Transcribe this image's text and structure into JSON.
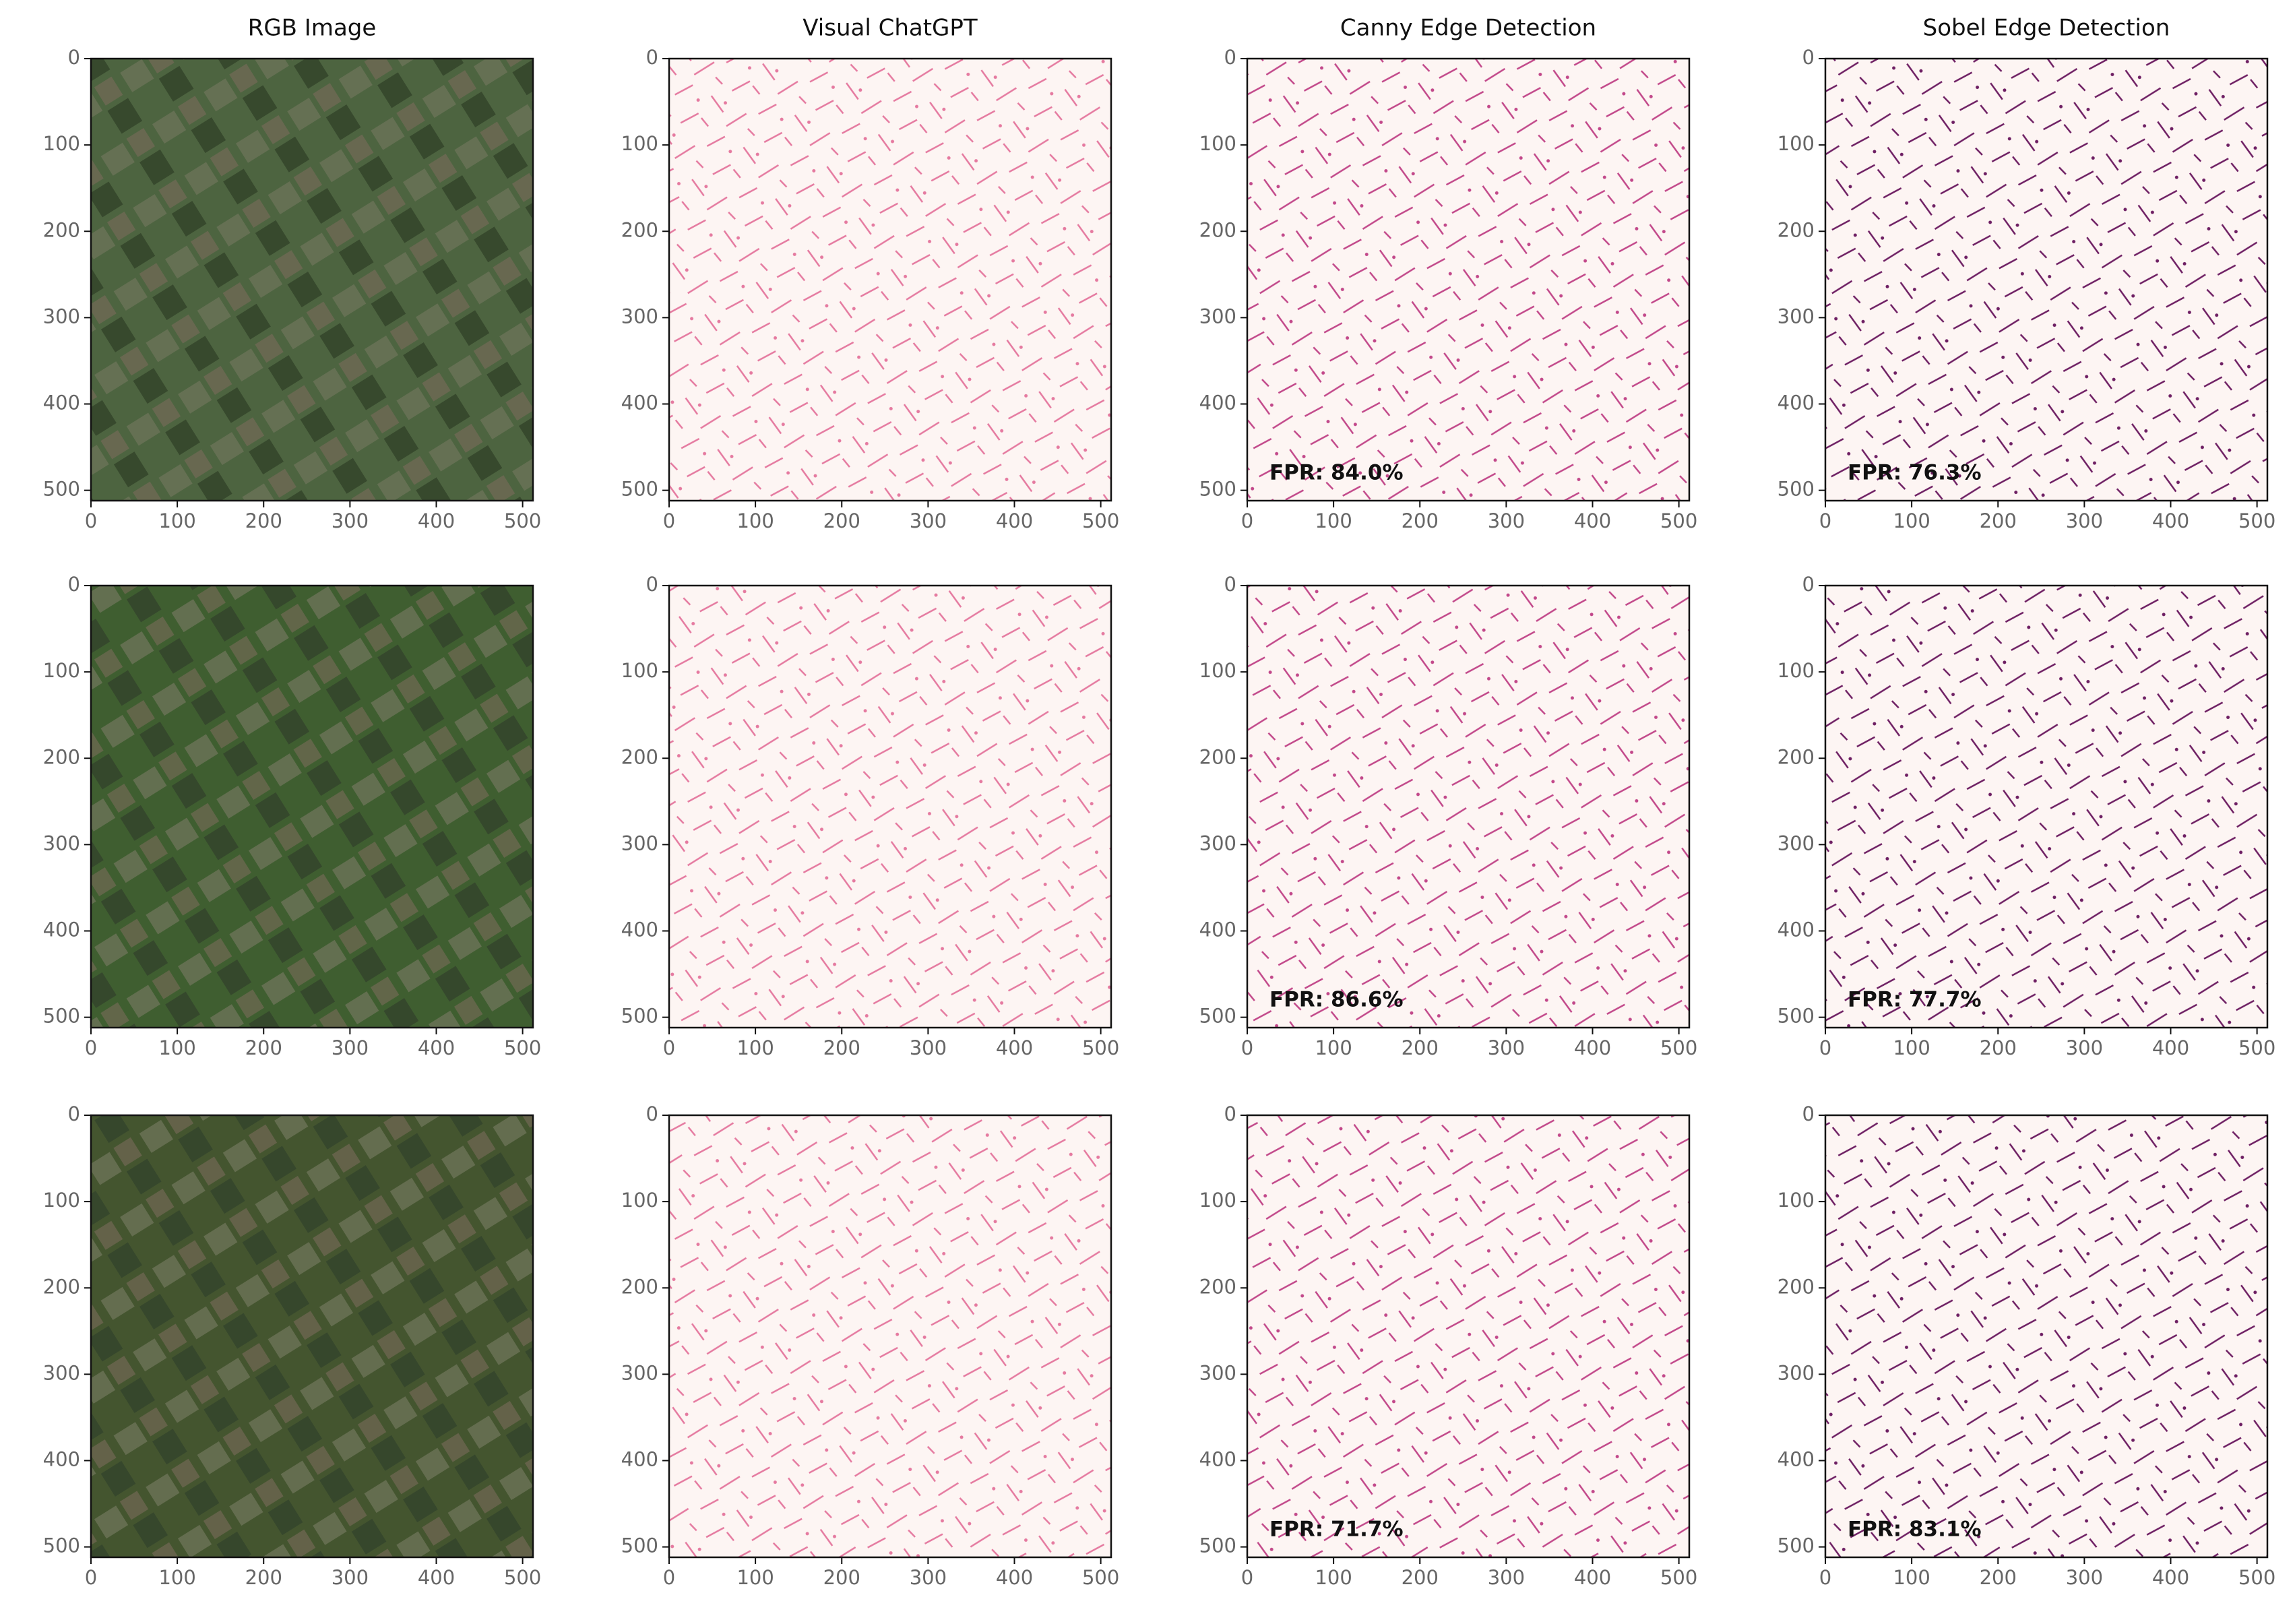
{
  "chart_data": [
    {
      "type": "image",
      "title": "RGB Image",
      "color": "#4d6440",
      "xlim": [
        0,
        512
      ],
      "ylim": [
        512,
        0
      ],
      "xticks": [
        0,
        100,
        200,
        300,
        400,
        500
      ],
      "yticks": [
        0,
        100,
        200,
        300,
        400,
        500
      ]
    },
    {
      "type": "image",
      "title": "Visual ChatGPT",
      "color": "#e57aa0",
      "xlim": [
        0,
        512
      ],
      "ylim": [
        512,
        0
      ],
      "xticks": [
        0,
        100,
        200,
        300,
        400,
        500
      ],
      "yticks": [
        0,
        100,
        200,
        300,
        400,
        500
      ]
    },
    {
      "type": "image",
      "title": "Canny Edge Detection",
      "color": "#c2488a",
      "annotation": "FPR: 84.0%",
      "xlim": [
        0,
        512
      ],
      "ylim": [
        512,
        0
      ],
      "xticks": [
        0,
        100,
        200,
        300,
        400,
        500
      ],
      "yticks": [
        0,
        100,
        200,
        300,
        400,
        500
      ]
    },
    {
      "type": "image",
      "title": "Sobel Edge Detection",
      "color": "#6e1f63",
      "annotation": "FPR: 76.3%",
      "xlim": [
        0,
        512
      ],
      "ylim": [
        512,
        0
      ],
      "xticks": [
        0,
        100,
        200,
        300,
        400,
        500
      ],
      "yticks": [
        0,
        100,
        200,
        300,
        400,
        500
      ]
    },
    {
      "type": "image",
      "color": "#3f5e30",
      "xlim": [
        0,
        512
      ],
      "ylim": [
        512,
        0
      ],
      "xticks": [
        0,
        100,
        200,
        300,
        400,
        500
      ],
      "yticks": [
        0,
        100,
        200,
        300,
        400,
        500
      ]
    },
    {
      "type": "image",
      "color": "#e57aa0",
      "xlim": [
        0,
        512
      ],
      "ylim": [
        512,
        0
      ],
      "xticks": [
        0,
        100,
        200,
        300,
        400,
        500
      ],
      "yticks": [
        0,
        100,
        200,
        300,
        400,
        500
      ]
    },
    {
      "type": "image",
      "color": "#c2488a",
      "annotation": "FPR: 86.6%",
      "xlim": [
        0,
        512
      ],
      "ylim": [
        512,
        0
      ],
      "xticks": [
        0,
        100,
        200,
        300,
        400,
        500
      ],
      "yticks": [
        0,
        100,
        200,
        300,
        400,
        500
      ]
    },
    {
      "type": "image",
      "color": "#6e1f63",
      "annotation": "FPR: 77.7%",
      "xlim": [
        0,
        512
      ],
      "ylim": [
        512,
        0
      ],
      "xticks": [
        0,
        100,
        200,
        300,
        400,
        500
      ],
      "yticks": [
        0,
        100,
        200,
        300,
        400,
        500
      ]
    },
    {
      "type": "image",
      "color": "#44552f",
      "xlim": [
        0,
        512
      ],
      "ylim": [
        512,
        0
      ],
      "xticks": [
        0,
        100,
        200,
        300,
        400,
        500
      ],
      "yticks": [
        0,
        100,
        200,
        300,
        400,
        500
      ]
    },
    {
      "type": "image",
      "color": "#e57aa0",
      "xlim": [
        0,
        512
      ],
      "ylim": [
        512,
        0
      ],
      "xticks": [
        0,
        100,
        200,
        300,
        400,
        500
      ],
      "yticks": [
        0,
        100,
        200,
        300,
        400,
        500
      ]
    },
    {
      "type": "image",
      "color": "#c2488a",
      "annotation": "FPR: 71.7%",
      "xlim": [
        0,
        512
      ],
      "ylim": [
        512,
        0
      ],
      "xticks": [
        0,
        100,
        200,
        300,
        400,
        500
      ],
      "yticks": [
        0,
        100,
        200,
        300,
        400,
        500
      ]
    },
    {
      "type": "image",
      "color": "#6e1f63",
      "annotation": "FPR: 83.1%",
      "xlim": [
        0,
        512
      ],
      "ylim": [
        512,
        0
      ],
      "xticks": [
        0,
        100,
        200,
        300,
        400,
        500
      ],
      "yticks": [
        0,
        100,
        200,
        300,
        400,
        500
      ]
    }
  ]
}
